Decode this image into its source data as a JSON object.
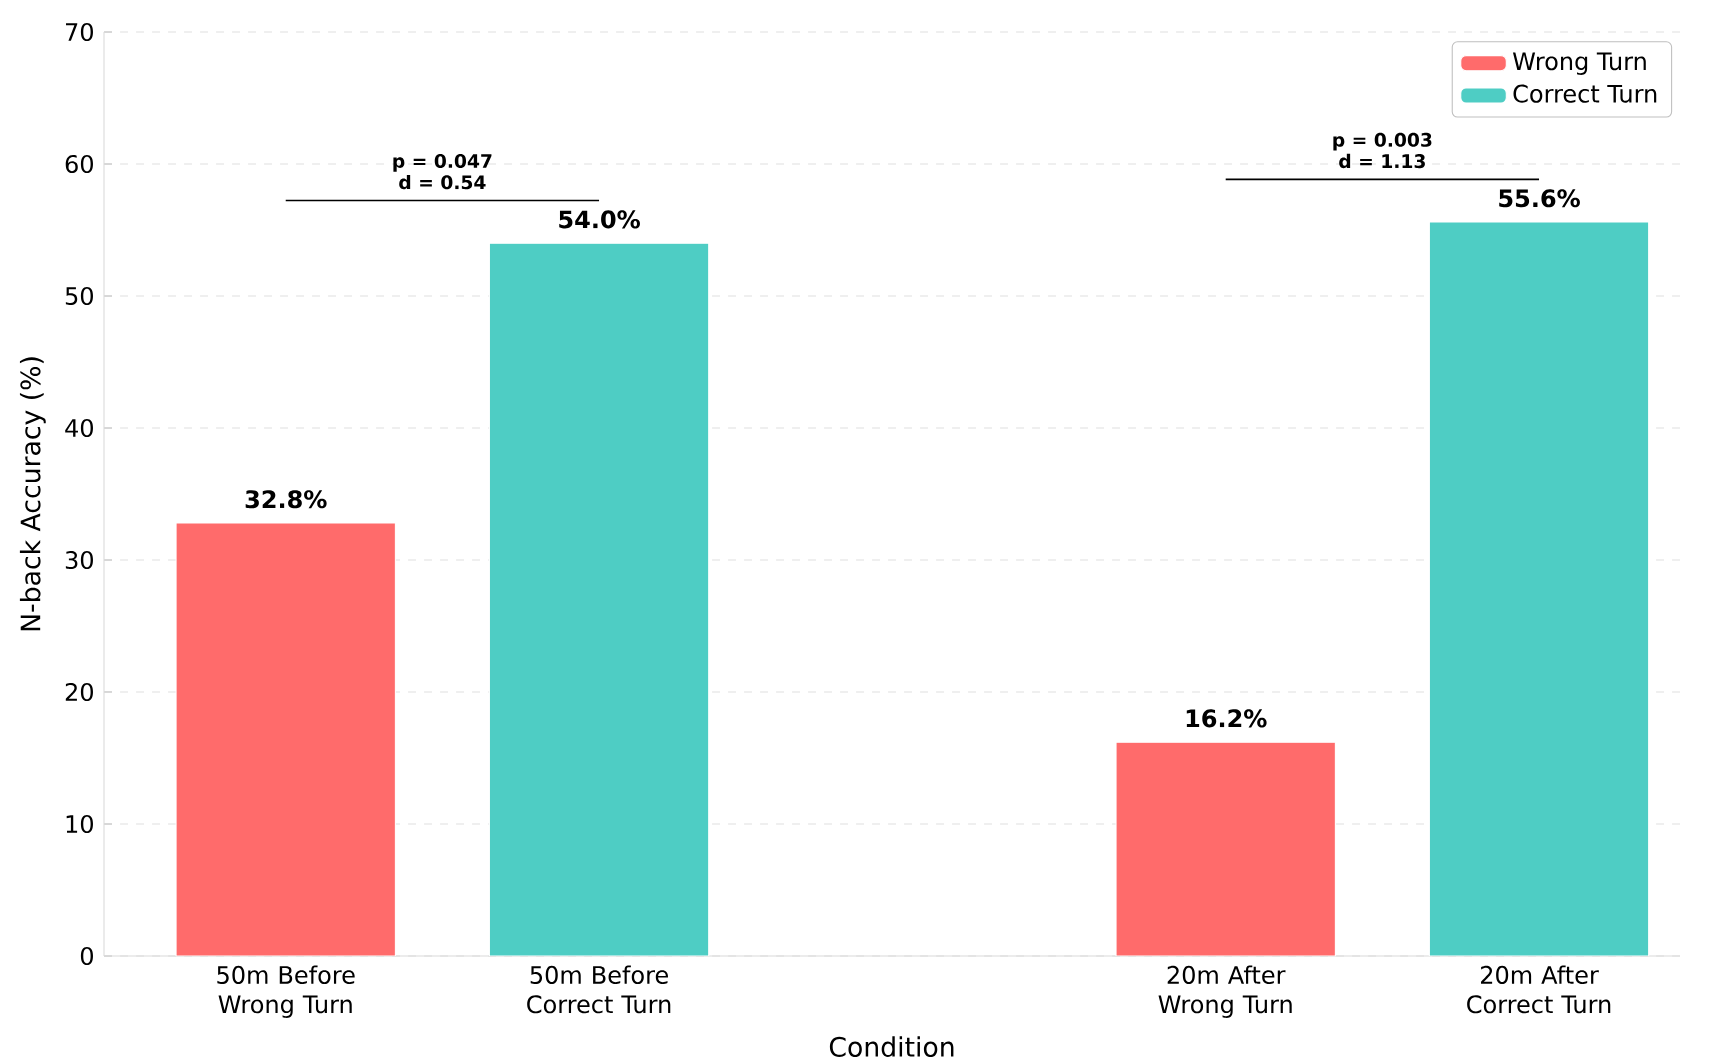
{
  "chart_data": {
    "type": "bar",
    "xlabel": "Condition",
    "ylabel": "N-back Accuracy (%)",
    "categories": [
      "50m Before Wrong Turn",
      "50m Before Correct Turn",
      null,
      "20m After Wrong Turn",
      "20m After Correct Turn"
    ],
    "series": [
      {
        "name": "Wrong Turn",
        "color": "#ff6b6b",
        "values": [
          32.8,
          null,
          null,
          16.2,
          null
        ],
        "value_labels": [
          "32.8%",
          null,
          null,
          "16.2%",
          null
        ]
      },
      {
        "name": "Correct Turn",
        "color": "#4ecdc4",
        "values": [
          null,
          54.0,
          null,
          null,
          55.6
        ],
        "value_labels": [
          null,
          "54.0%",
          null,
          null,
          "55.6%"
        ]
      }
    ],
    "annotations": [
      "p = 0.047",
      "d = 0.54",
      "p = 0.003",
      "d = 1.13"
    ],
    "ylim": [
      0,
      70
    ],
    "yticks": [
      0,
      10,
      20,
      30,
      40,
      50,
      60,
      70
    ],
    "grid": "y",
    "legend": "top right"
  }
}
